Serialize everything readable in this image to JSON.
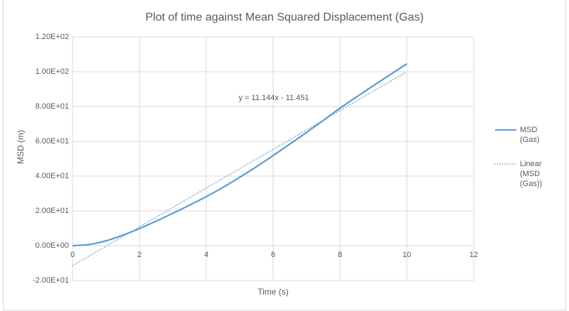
{
  "chart": {
    "title": "Plot of time against Mean Squared Displacement (Gas)",
    "annotation": "y = 11.144x - 11.451",
    "x_axis": {
      "label": "Time (s)",
      "ticks": [
        {
          "v": 0,
          "label": "0"
        },
        {
          "v": 2,
          "label": "2"
        },
        {
          "v": 4,
          "label": "4"
        },
        {
          "v": 6,
          "label": "6"
        },
        {
          "v": 8,
          "label": "8"
        },
        {
          "v": 10,
          "label": "10"
        },
        {
          "v": 12,
          "label": "12"
        }
      ]
    },
    "y_axis": {
      "label": "MSD (m)",
      "ticks": [
        {
          "v": -20,
          "label": "-2.00E+01"
        },
        {
          "v": 0,
          "label": "0.00E+00"
        },
        {
          "v": 20,
          "label": "2.00E+01"
        },
        {
          "v": 40,
          "label": "4.00E+01"
        },
        {
          "v": 60,
          "label": "6.00E+01"
        },
        {
          "v": 80,
          "label": "8.00E+01"
        },
        {
          "v": 100,
          "label": "1.00E+02"
        },
        {
          "v": 120,
          "label": "1.20E+02"
        }
      ]
    },
    "legend": [
      {
        "label": "MSD (Gas)",
        "style": "solid"
      },
      {
        "label": "Linear (MSD (Gas))",
        "style": "dotted"
      }
    ]
  },
  "colors": {
    "series_blue": "#5B9BD5",
    "gridline": "#D9D9D9",
    "frame": "#D9D9D9",
    "text": "#595959"
  },
  "chart_data": {
    "type": "line",
    "title": "Plot of time against Mean Squared Displacement (Gas)",
    "xlabel": "Time (s)",
    "ylabel": "MSD (m)",
    "xlim": [
      0,
      12
    ],
    "ylim": [
      -20,
      120
    ],
    "grid": true,
    "legend_position": "right",
    "trendline": {
      "slope": 11.144,
      "intercept": -11.451,
      "equation": "y = 11.144x - 11.451"
    },
    "series": [
      {
        "name": "MSD (Gas)",
        "style": "solid",
        "x": [
          0,
          0.5,
          1,
          1.5,
          2,
          2.5,
          3,
          3.5,
          4,
          4.5,
          5,
          5.5,
          6,
          6.5,
          7,
          7.5,
          8,
          8.5,
          9,
          9.5,
          10
        ],
        "y": [
          0,
          0.7,
          2.8,
          6.0,
          9.8,
          14.1,
          18.6,
          23.3,
          28.2,
          33.5,
          39.3,
          45.4,
          51.8,
          58.4,
          65.1,
          72.0,
          79.0,
          85.6,
          92.0,
          98.3,
          104.5
        ]
      },
      {
        "name": "Linear (MSD (Gas))",
        "style": "dotted",
        "x": [
          0,
          10
        ],
        "y": [
          -11.451,
          99.989
        ]
      }
    ]
  }
}
